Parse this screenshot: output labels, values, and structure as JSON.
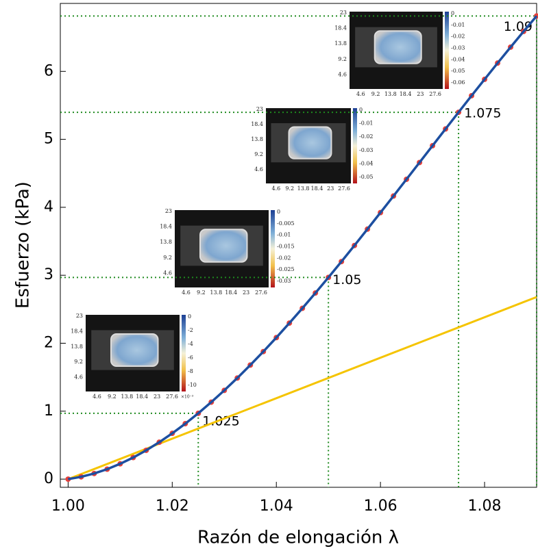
{
  "chart_data": {
    "type": "line",
    "xlabel": "Razón de elongación  λ",
    "ylabel": "Esfuerzo (kPa)",
    "xlim": [
      0.9985,
      1.09
    ],
    "ylim": [
      -0.12,
      7.0
    ],
    "xticks": [
      {
        "value": 1.0,
        "label": "1.00"
      },
      1.02,
      1.04,
      1.06,
      1.08
    ],
    "yticks": [
      0,
      1,
      2,
      3,
      4,
      5,
      6
    ],
    "x": [
      1.0,
      1.0025,
      1.005,
      1.0075,
      1.01,
      1.0125,
      1.015,
      1.0175,
      1.02,
      1.0225,
      1.025,
      1.0275,
      1.03,
      1.0325,
      1.035,
      1.0375,
      1.04,
      1.0425,
      1.045,
      1.0475,
      1.05,
      1.0525,
      1.055,
      1.0575,
      1.06,
      1.0625,
      1.065,
      1.0675,
      1.07,
      1.0725,
      1.075,
      1.0775,
      1.08,
      1.0825,
      1.085,
      1.0875,
      1.09
    ],
    "series": [
      {
        "color": "#e8403a",
        "marker": "dot",
        "values": [
          0,
          0.034,
          0.083,
          0.147,
          0.226,
          0.318,
          0.424,
          0.543,
          0.674,
          0.816,
          0.969,
          1.133,
          1.306,
          1.488,
          1.679,
          1.877,
          2.083,
          2.296,
          2.514,
          2.739,
          2.968,
          3.201,
          3.438,
          3.679,
          3.922,
          4.166,
          4.412,
          4.659,
          4.906,
          5.153,
          5.398,
          5.642,
          5.883,
          6.122,
          6.357,
          6.588,
          6.815
        ]
      },
      {
        "color": "#1d4fa0",
        "marker": "line",
        "values": [
          0,
          0.034,
          0.083,
          0.147,
          0.226,
          0.318,
          0.424,
          0.543,
          0.674,
          0.816,
          0.969,
          1.133,
          1.306,
          1.488,
          1.679,
          1.877,
          2.083,
          2.296,
          2.514,
          2.739,
          2.968,
          3.201,
          3.438,
          3.679,
          3.922,
          4.166,
          4.412,
          4.659,
          4.906,
          5.153,
          5.398,
          5.642,
          5.883,
          6.122,
          6.357,
          6.588,
          6.815
        ]
      }
    ],
    "linear": {
      "color": "#f5c400",
      "x": [
        1.0,
        1.09
      ],
      "values": [
        0,
        2.68
      ]
    },
    "guides": [
      {
        "x": 1.025,
        "y": 0.969
      },
      {
        "x": 1.05,
        "y": 2.968
      },
      {
        "x": 1.075,
        "y": 5.398
      },
      {
        "x": 1.09,
        "y": 6.815
      }
    ],
    "guide_color": "#1e8a1e",
    "insets": [
      {
        "yticks": [
          23,
          18.4,
          13.8,
          9.2,
          4.6
        ],
        "xticks": [
          4.6,
          9.2,
          13.8,
          18.4,
          23,
          27.6
        ],
        "cbticks": [
          0,
          -2,
          -4,
          -6,
          -8,
          -10
        ],
        "cbscale": "×10⁻³"
      },
      {
        "yticks": [
          23,
          18.4,
          13.8,
          9.2,
          4.6
        ],
        "xticks": [
          4.6,
          9.2,
          13.8,
          18.4,
          23,
          27.6
        ],
        "cbticks": [
          0,
          -0.005,
          -0.01,
          -0.015,
          -0.02,
          -0.025,
          -0.03
        ]
      },
      {
        "yticks": [
          23,
          18.4,
          13.8,
          9.2,
          4.6
        ],
        "xticks": [
          4.6,
          9.2,
          13.8,
          18.4,
          23,
          27.6
        ],
        "cbticks": [
          0,
          -0.01,
          -0.02,
          -0.03,
          -0.04,
          -0.05
        ]
      },
      {
        "yticks": [
          23,
          18.4,
          13.8,
          9.2,
          4.6
        ],
        "xticks": [
          4.6,
          9.2,
          13.8,
          18.4,
          23,
          27.6
        ],
        "cbticks": [
          0,
          -0.01,
          -0.02,
          -0.03,
          -0.04,
          -0.05,
          -0.06
        ]
      }
    ]
  }
}
